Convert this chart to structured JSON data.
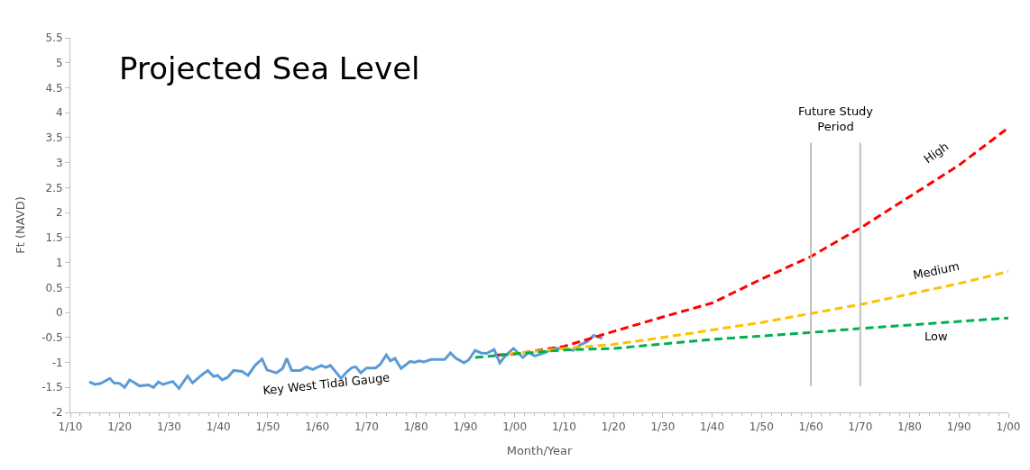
{
  "chart_data": {
    "type": "line",
    "title": "Projected Sea Level",
    "xlabel": "Month/Year",
    "ylabel": "Ft (NAVD)",
    "annotations": [
      "Future Study\nPeriod"
    ],
    "xlim": [
      "1910-01",
      "2100-01"
    ],
    "xticks": [
      {
        "value": "1910-01",
        "label": "1/10"
      },
      {
        "value": "1920-01",
        "label": "1/20"
      },
      {
        "value": "1930-01",
        "label": "1/30"
      },
      {
        "value": "1940-01",
        "label": "1/40"
      },
      {
        "value": "1950-01",
        "label": "1/50"
      },
      {
        "value": "1960-01",
        "label": "1/60"
      },
      {
        "value": "1970-01",
        "label": "1/70"
      },
      {
        "value": "1980-01",
        "label": "1/80"
      },
      {
        "value": "1990-01",
        "label": "1/90"
      },
      {
        "value": "2000-01",
        "label": "1/00"
      },
      {
        "value": "2010-01",
        "label": "1/10"
      },
      {
        "value": "2020-01",
        "label": "1/20"
      },
      {
        "value": "2030-01",
        "label": "1/30"
      },
      {
        "value": "2040-01",
        "label": "1/40"
      },
      {
        "value": "2050-01",
        "label": "1/50"
      },
      {
        "value": "2060-01",
        "label": "1/60"
      },
      {
        "value": "2070-01",
        "label": "1/70"
      },
      {
        "value": "2080-01",
        "label": "1/80"
      },
      {
        "value": "2090-01",
        "label": "1/90"
      },
      {
        "value": "2100-01",
        "label": "1/00"
      }
    ],
    "ylim": [
      -2,
      5.5
    ],
    "yticks": [
      -2,
      -1.5,
      -1,
      -0.5,
      0,
      0.5,
      1,
      1.5,
      2,
      2.5,
      3,
      3.5,
      4,
      4.5,
      5,
      5.5
    ],
    "legend": false,
    "marker": "none",
    "ref_lines": [
      {
        "axis": "x",
        "value": "2060-01",
        "color": "#bfbfbf"
      },
      {
        "axis": "x",
        "value": "2070-01",
        "color": "#bfbfbf"
      }
    ],
    "series": [
      {
        "name": "Key West Tidal Gauge",
        "color": "#5b9bd5",
        "line_style": "solid",
        "x": [
          "1913-11",
          "1915-01",
          "1916-03",
          "1918-01",
          "1918-11",
          "1920-01",
          "1921-01",
          "1922-01",
          "1922-10",
          "1924-01",
          "1925-11",
          "1926-11",
          "1927-11",
          "1928-10",
          "1930-10",
          "1932-01",
          "1933-10",
          "1934-10",
          "1936-07",
          "1937-11",
          "1939-01",
          "1939-11",
          "1940-10",
          "1941-11",
          "1943-02",
          "1944-10",
          "1946-01",
          "1947-06",
          "1948-11",
          "1949-11",
          "1951-10",
          "1953-01",
          "1953-11",
          "1954-11",
          "1956-08",
          "1957-11",
          "1959-02",
          "1960-11",
          "1961-10",
          "1962-09",
          "1964-11",
          "1966-02",
          "1967-02",
          "1967-11",
          "1968-11",
          "1970-01",
          "1971-11",
          "1972-10",
          "1974-01",
          "1974-11",
          "1975-10",
          "1977-01",
          "1978-11",
          "1979-10",
          "1980-09",
          "1981-08",
          "1983-02",
          "1985-11",
          "1987-01",
          "1988-01",
          "1989-10",
          "1990-09",
          "1992-01",
          "1993-03",
          "1994-05",
          "1995-11",
          "1997-01",
          "1998-01",
          "1999-10",
          "2001-09",
          "2002-11",
          "2004-02",
          "2006-04",
          "2008-02",
          "2010-03",
          "2011-11",
          "2013-04",
          "2014-10",
          "2016-01",
          "2017-10"
        ],
        "values": [
          -1.39,
          -1.44,
          -1.42,
          -1.32,
          -1.41,
          -1.42,
          -1.5,
          -1.35,
          -1.39,
          -1.47,
          -1.45,
          -1.5,
          -1.39,
          -1.44,
          -1.38,
          -1.52,
          -1.27,
          -1.41,
          -1.26,
          -1.16,
          -1.28,
          -1.26,
          -1.35,
          -1.3,
          -1.16,
          -1.18,
          -1.26,
          -1.06,
          -0.93,
          -1.15,
          -1.21,
          -1.12,
          -0.92,
          -1.16,
          -1.16,
          -1.09,
          -1.14,
          -1.06,
          -1.1,
          -1.06,
          -1.32,
          -1.18,
          -1.1,
          -1.09,
          -1.21,
          -1.11,
          -1.11,
          -1.04,
          -0.85,
          -0.97,
          -0.92,
          -1.12,
          -0.98,
          -1,
          -0.97,
          -0.99,
          -0.94,
          -0.94,
          -0.81,
          -0.91,
          -1.01,
          -0.95,
          -0.76,
          -0.81,
          -0.82,
          -0.74,
          -1.01,
          -0.88,
          -0.72,
          -0.9,
          -0.8,
          -0.87,
          -0.8,
          -0.72,
          -0.72,
          -0.76,
          -0.65,
          -0.58,
          -0.46,
          -0.52
        ]
      },
      {
        "name": "High",
        "color": "#ff0000",
        "line_style": "dashed",
        "x": [
          "1996-07",
          "2000-01",
          "2010-01",
          "2020-01",
          "2030-01",
          "2040-01",
          "2050-01",
          "2060-01",
          "2070-01",
          "2080-01",
          "2090-01",
          "2100-01"
        ],
        "values": [
          -0.85,
          -0.83,
          -0.68,
          -0.38,
          -0.09,
          0.19,
          0.67,
          1.12,
          1.69,
          2.32,
          2.95,
          3.7
        ]
      },
      {
        "name": "Medium",
        "color": "#ffc000",
        "line_style": "dashed",
        "x": [
          "1999-01",
          "2010-01",
          "2020-01",
          "2030-01",
          "2040-01",
          "2050-01",
          "2060-01",
          "2070-01",
          "2080-01",
          "2090-01",
          "2100-01"
        ],
        "values": [
          -0.83,
          -0.72,
          -0.64,
          -0.5,
          -0.35,
          -0.2,
          -0.02,
          0.16,
          0.37,
          0.58,
          0.82
        ]
      },
      {
        "name": "Low",
        "color": "#00b050",
        "line_style": "dashed",
        "x": [
          "1992-01",
          "2000-01",
          "2010-01",
          "2020-01",
          "2030-01",
          "2040-01",
          "2050-01",
          "2060-01",
          "2070-01",
          "2080-01",
          "2090-01",
          "2100-01"
        ],
        "values": [
          -0.9,
          -0.83,
          -0.75,
          -0.72,
          -0.63,
          -0.54,
          -0.47,
          -0.4,
          -0.32,
          -0.25,
          -0.18,
          -0.11
        ]
      }
    ]
  }
}
